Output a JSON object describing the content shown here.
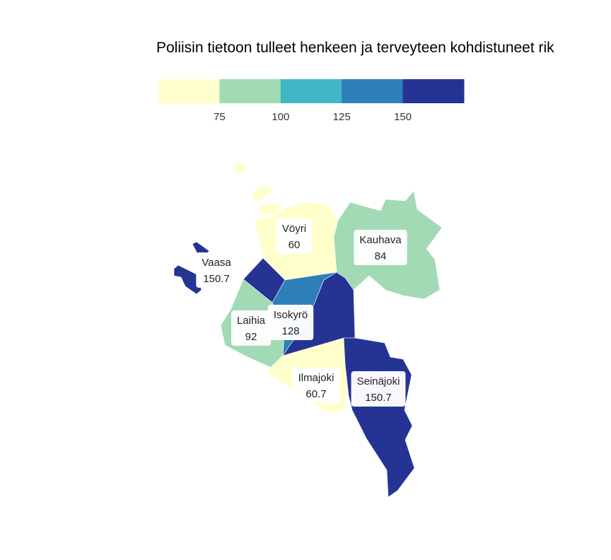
{
  "title": "Poliisin tietoon tulleet henkeen ja terveyteen kohdistuneet rik",
  "legend": {
    "breaks": [
      75,
      100,
      125,
      150
    ],
    "colors": [
      "#ffffcc",
      "#a1dab4",
      "#41b6c4",
      "#2c7fb8",
      "#253494"
    ]
  },
  "regions": [
    {
      "name": "Vöyri",
      "value": 60,
      "value_label": "60"
    },
    {
      "name": "Kauhava",
      "value": 84,
      "value_label": "84"
    },
    {
      "name": "Vaasa",
      "value": 150.7,
      "value_label": "150.7"
    },
    {
      "name": "Laihia",
      "value": 92,
      "value_label": "92"
    },
    {
      "name": "Isokyrö",
      "value": 128,
      "value_label": "128"
    },
    {
      "name": "Ilmajoki",
      "value": 60.7,
      "value_label": "60.7"
    },
    {
      "name": "Seinäjoki",
      "value": 150.7,
      "value_label": "150.7"
    }
  ]
}
